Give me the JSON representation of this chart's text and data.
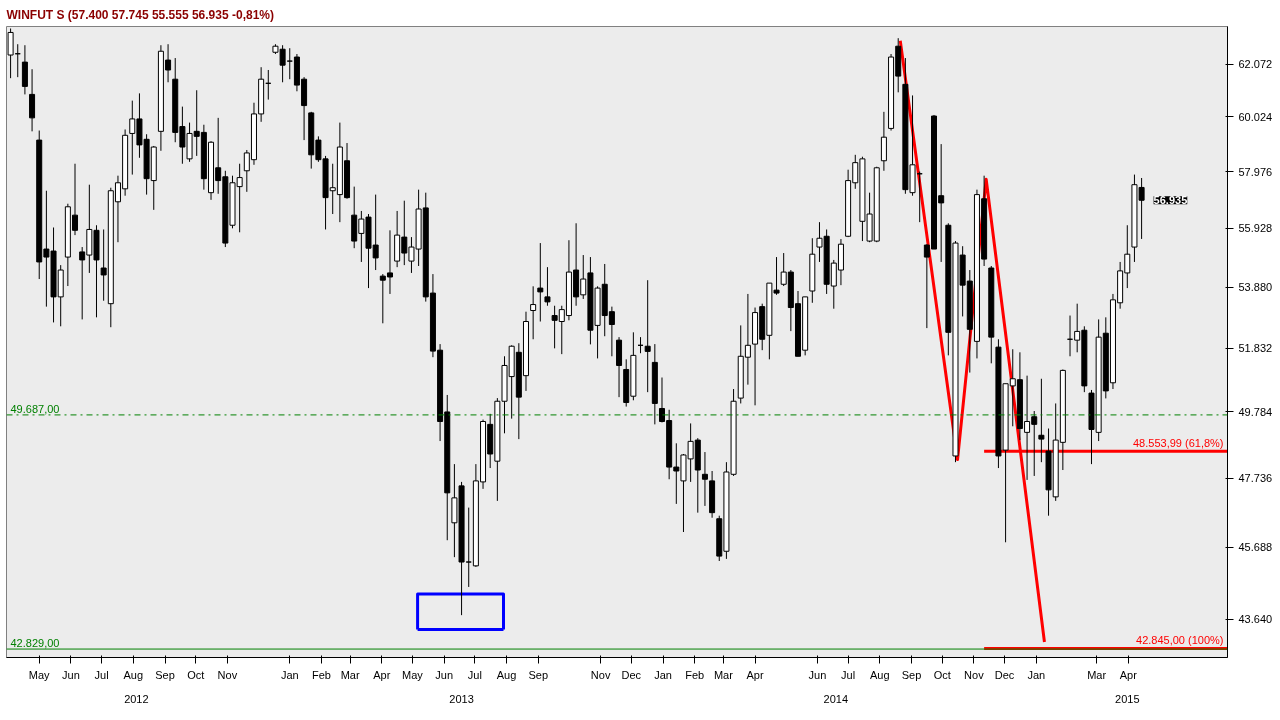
{
  "chart_data": {
    "type": "candlestick",
    "title": "WINFUT S (57.400 57.745 55.555 56.935 -0,81%)",
    "log": true,
    "x": [
      "2012-04-09",
      "2012-04-16",
      "2012-04-23",
      "2012-04-30",
      "2012-05-07",
      "2012-05-14",
      "2012-05-21",
      "2012-05-28",
      "2012-06-04",
      "2012-06-11",
      "2012-06-18",
      "2012-06-25",
      "2012-07-02",
      "2012-07-09",
      "2012-07-16",
      "2012-07-23",
      "2012-07-30",
      "2012-08-06",
      "2012-08-13",
      "2012-08-20",
      "2012-08-27",
      "2012-09-03",
      "2012-09-10",
      "2012-09-17",
      "2012-09-24",
      "2012-10-01",
      "2012-10-08",
      "2012-10-15",
      "2012-10-22",
      "2012-10-29",
      "2012-11-05",
      "2012-11-12",
      "2012-11-19",
      "2012-11-26",
      "2012-12-03",
      "2012-12-10",
      "2012-12-17",
      "2012-12-24",
      "2012-12-31",
      "2013-01-07",
      "2013-01-14",
      "2013-01-21",
      "2013-01-28",
      "2013-02-04",
      "2013-02-11",
      "2013-02-18",
      "2013-02-25",
      "2013-03-04",
      "2013-03-11",
      "2013-03-18",
      "2013-03-25",
      "2013-04-01",
      "2013-04-08",
      "2013-04-15",
      "2013-04-22",
      "2013-04-29",
      "2013-05-06",
      "2013-05-13",
      "2013-05-20",
      "2013-05-27",
      "2013-06-03",
      "2013-06-10",
      "2013-06-17",
      "2013-06-24",
      "2013-07-01",
      "2013-07-08",
      "2013-07-15",
      "2013-07-22",
      "2013-07-29",
      "2013-08-05",
      "2013-08-12",
      "2013-08-19",
      "2013-08-26",
      "2013-09-02",
      "2013-09-09",
      "2013-09-16",
      "2013-09-23",
      "2013-09-30",
      "2013-10-07",
      "2013-10-14",
      "2013-10-21",
      "2013-10-28",
      "2013-11-04",
      "2013-11-11",
      "2013-11-18",
      "2013-11-25",
      "2013-12-02",
      "2013-12-09",
      "2013-12-16",
      "2013-12-23",
      "2013-12-30",
      "2014-01-06",
      "2014-01-13",
      "2014-01-20",
      "2014-01-27",
      "2014-02-03",
      "2014-02-10",
      "2014-02-17",
      "2014-02-24",
      "2014-03-03",
      "2014-03-10",
      "2014-03-17",
      "2014-03-24",
      "2014-03-31",
      "2014-04-07",
      "2014-04-14",
      "2014-04-21",
      "2014-04-28",
      "2014-05-05",
      "2014-05-12",
      "2014-05-19",
      "2014-05-26",
      "2014-06-02",
      "2014-06-09",
      "2014-06-16",
      "2014-06-23",
      "2014-06-30",
      "2014-07-07",
      "2014-07-14",
      "2014-07-21",
      "2014-07-28",
      "2014-08-04",
      "2014-08-11",
      "2014-08-18",
      "2014-08-25",
      "2014-09-01",
      "2014-09-08",
      "2014-09-15",
      "2014-09-22",
      "2014-09-29",
      "2014-10-06",
      "2014-10-13",
      "2014-10-20",
      "2014-10-27",
      "2014-11-03",
      "2014-11-10",
      "2014-11-17",
      "2014-11-24",
      "2014-12-01",
      "2014-12-08",
      "2014-12-15",
      "2014-12-22",
      "2014-12-29",
      "2015-01-05",
      "2015-01-12",
      "2015-01-19",
      "2015-01-26",
      "2015-02-02",
      "2015-02-09",
      "2015-02-16",
      "2015-02-23",
      "2015-03-02",
      "2015-03-09",
      "2015-03-16",
      "2015-03-23",
      "2015-03-30",
      "2015-04-06",
      "2015-04-13",
      "2015-04-20"
    ],
    "ohlc": [
      [
        62430,
        63490,
        61520,
        63330
      ],
      [
        62480,
        62860,
        61560,
        62480
      ],
      [
        62150,
        62820,
        60890,
        61200
      ],
      [
        60890,
        61870,
        59480,
        59990
      ],
      [
        59150,
        59510,
        54160,
        54750
      ],
      [
        55200,
        57280,
        53220,
        54920
      ],
      [
        55130,
        55960,
        52690,
        53550
      ],
      [
        53550,
        54640,
        52560,
        54470
      ],
      [
        54920,
        56810,
        53920,
        56700
      ],
      [
        56400,
        58270,
        55690,
        55860
      ],
      [
        55100,
        55270,
        52790,
        54820
      ],
      [
        54990,
        57500,
        54370,
        55890
      ],
      [
        55860,
        56040,
        52860,
        54820
      ],
      [
        54540,
        55890,
        53420,
        54300
      ],
      [
        53320,
        57390,
        52530,
        57280
      ],
      [
        56880,
        57830,
        55440,
        57570
      ],
      [
        57350,
        59550,
        57100,
        59330
      ],
      [
        59400,
        60650,
        57870,
        59950
      ],
      [
        59950,
        60930,
        58490,
        58970
      ],
      [
        59180,
        59370,
        57140,
        57720
      ],
      [
        57650,
        58930,
        56590,
        58890
      ],
      [
        59480,
        62820,
        58750,
        62580
      ],
      [
        62230,
        62860,
        61360,
        61840
      ],
      [
        61480,
        62310,
        59070,
        59440
      ],
      [
        59660,
        60420,
        58270,
        58890
      ],
      [
        58450,
        59810,
        58340,
        59400
      ],
      [
        59480,
        61050,
        58560,
        59290
      ],
      [
        59440,
        59730,
        57320,
        57720
      ],
      [
        57210,
        59110,
        56950,
        59070
      ],
      [
        58120,
        59990,
        57170,
        57650
      ],
      [
        57790,
        58010,
        55270,
        55410
      ],
      [
        56040,
        57830,
        55930,
        57570
      ],
      [
        57430,
        58270,
        55790,
        57760
      ],
      [
        58010,
        58780,
        57240,
        58670
      ],
      [
        58420,
        60570,
        58230,
        60140
      ],
      [
        60140,
        61950,
        59840,
        61480
      ],
      [
        61320,
        61840,
        60690,
        61320
      ],
      [
        62540,
        62860,
        62470,
        62780
      ],
      [
        62660,
        62820,
        61360,
        62030
      ],
      [
        62190,
        62700,
        61480,
        62190
      ],
      [
        62350,
        62470,
        61010,
        61250
      ],
      [
        61480,
        61560,
        59150,
        60460
      ],
      [
        60180,
        60220,
        58090,
        58600
      ],
      [
        59150,
        59290,
        58340,
        58420
      ],
      [
        58450,
        58560,
        55890,
        57030
      ],
      [
        57280,
        58270,
        56440,
        57390
      ],
      [
        57140,
        59810,
        56150,
        58890
      ],
      [
        58380,
        59040,
        56990,
        57030
      ],
      [
        56400,
        57430,
        55230,
        55480
      ],
      [
        55750,
        56550,
        54750,
        56260
      ],
      [
        56330,
        56440,
        53850,
        55230
      ],
      [
        55340,
        57140,
        54470,
        54890
      ],
      [
        54260,
        54330,
        52660,
        54120
      ],
      [
        54370,
        55860,
        53650,
        54230
      ],
      [
        54780,
        56550,
        54570,
        55690
      ],
      [
        55620,
        56920,
        54640,
        55060
      ],
      [
        54780,
        55620,
        54370,
        55270
      ],
      [
        55200,
        57320,
        54610,
        56620
      ],
      [
        56660,
        57210,
        53390,
        53550
      ],
      [
        53680,
        54330,
        51540,
        51740
      ],
      [
        51770,
        51970,
        48870,
        49480
      ],
      [
        49780,
        50320,
        45890,
        47290
      ],
      [
        46400,
        48160,
        45400,
        47140
      ],
      [
        47500,
        47620,
        43760,
        45260
      ],
      [
        45260,
        46850,
        44550,
        45260
      ],
      [
        45150,
        48160,
        45120,
        47650
      ],
      [
        47620,
        49540,
        47410,
        49480
      ],
      [
        49390,
        49720,
        48040,
        48470
      ],
      [
        48250,
        50220,
        47050,
        50120
      ],
      [
        50120,
        51570,
        49110,
        51270
      ],
      [
        50910,
        51930,
        49570,
        51900
      ],
      [
        51700,
        52000,
        48930,
        50250
      ],
      [
        50940,
        53050,
        50450,
        52720
      ],
      [
        53090,
        53910,
        52130,
        53290
      ],
      [
        53850,
        55410,
        52720,
        53720
      ],
      [
        53550,
        54570,
        53250,
        53380
      ],
      [
        52920,
        53250,
        51830,
        52760
      ],
      [
        52720,
        53250,
        51640,
        53120
      ],
      [
        52920,
        55510,
        52760,
        54400
      ],
      [
        54470,
        56110,
        53250,
        53550
      ],
      [
        53620,
        54990,
        53480,
        54160
      ],
      [
        54370,
        54920,
        51960,
        52430
      ],
      [
        52590,
        53910,
        51500,
        53850
      ],
      [
        53980,
        54680,
        52230,
        52920
      ],
      [
        53050,
        53220,
        51570,
        52620
      ],
      [
        52100,
        52200,
        50250,
        51270
      ],
      [
        51140,
        51470,
        49950,
        50080
      ],
      [
        50280,
        52360,
        50150,
        51600
      ],
      [
        51930,
        52200,
        51670,
        51930
      ],
      [
        51900,
        54120,
        50410,
        51730
      ],
      [
        51370,
        51970,
        49390,
        50050
      ],
      [
        49890,
        50880,
        49450,
        49480
      ],
      [
        49510,
        49850,
        47700,
        48070
      ],
      [
        48070,
        48800,
        46960,
        47950
      ],
      [
        47650,
        48470,
        46130,
        48440
      ],
      [
        48320,
        49420,
        47620,
        48860
      ],
      [
        48900,
        48960,
        46700,
        47980
      ],
      [
        47850,
        48530,
        46900,
        47700
      ],
      [
        47650,
        47950,
        46550,
        46700
      ],
      [
        46520,
        46610,
        45290,
        45430
      ],
      [
        45570,
        48220,
        45350,
        47920
      ],
      [
        47850,
        50510,
        47800,
        50120
      ],
      [
        50220,
        52590,
        50050,
        51570
      ],
      [
        51540,
        53650,
        50650,
        51930
      ],
      [
        51970,
        53190,
        49990,
        53020
      ],
      [
        53220,
        53320,
        51770,
        52130
      ],
      [
        52260,
        54020,
        51470,
        54020
      ],
      [
        53780,
        54920,
        53620,
        53680
      ],
      [
        53980,
        55060,
        53920,
        54400
      ],
      [
        54400,
        54470,
        52400,
        53190
      ],
      [
        53320,
        53750,
        51570,
        51570
      ],
      [
        51770,
        53550,
        51600,
        53550
      ],
      [
        53750,
        55580,
        53350,
        55020
      ],
      [
        55270,
        56150,
        54750,
        55580
      ],
      [
        55650,
        55890,
        53650,
        53980
      ],
      [
        53920,
        54820,
        53150,
        54710
      ],
      [
        54470,
        55550,
        53950,
        55370
      ],
      [
        55650,
        58050,
        55620,
        57650
      ],
      [
        57570,
        58600,
        57350,
        58310
      ],
      [
        56180,
        58530,
        55480,
        58450
      ],
      [
        55480,
        57210,
        55440,
        56440
      ],
      [
        55480,
        58160,
        55440,
        58120
      ],
      [
        58380,
        60220,
        58010,
        59260
      ],
      [
        59590,
        62470,
        59510,
        62350
      ],
      [
        62780,
        63100,
        60970,
        61600
      ],
      [
        61280,
        62310,
        57170,
        57320
      ],
      [
        57210,
        60850,
        57100,
        58230
      ],
      [
        57900,
        57980,
        56150,
        57900
      ],
      [
        55340,
        55370,
        52500,
        54920
      ],
      [
        60060,
        60100,
        55200,
        55200
      ],
      [
        57100,
        59000,
        54750,
        56840
      ],
      [
        56040,
        56110,
        51600,
        52360
      ],
      [
        48410,
        55480,
        48220,
        55410
      ],
      [
        54990,
        55300,
        52890,
        53950
      ],
      [
        54090,
        54470,
        51040,
        52460
      ],
      [
        52060,
        57320,
        51500,
        57140
      ],
      [
        56990,
        57830,
        54610,
        54850
      ],
      [
        54540,
        54610,
        51340,
        52200
      ],
      [
        51870,
        52130,
        48040,
        48410
      ],
      [
        48590,
        50680,
        45830,
        50680
      ],
      [
        50610,
        51800,
        49330,
        50840
      ],
      [
        50810,
        51700,
        48900,
        49260
      ],
      [
        49140,
        50940,
        47680,
        49480
      ],
      [
        49630,
        49810,
        47800,
        49390
      ],
      [
        49050,
        50840,
        48220,
        48930
      ],
      [
        48560,
        49260,
        46610,
        47380
      ],
      [
        47170,
        50050,
        47050,
        48900
      ],
      [
        48830,
        51140,
        47980,
        51110
      ],
      [
        52130,
        52920,
        51570,
        52130
      ],
      [
        52100,
        53320,
        51700,
        52390
      ],
      [
        52430,
        52560,
        50410,
        50610
      ],
      [
        50380,
        50480,
        48160,
        49230
      ],
      [
        49140,
        52790,
        48870,
        52200
      ],
      [
        52330,
        52860,
        50210,
        50450
      ],
      [
        50710,
        53650,
        50510,
        53450
      ],
      [
        53350,
        54750,
        53150,
        54440
      ],
      [
        54370,
        56040,
        53850,
        55020
      ],
      [
        55270,
        57870,
        54750,
        57500
      ],
      [
        57400,
        57745,
        55555,
        56935
      ]
    ],
    "xlim": [
      "2012-04-05",
      "2015-07-13"
    ],
    "ylim": [
      42600,
      63570
    ],
    "xticks": [
      {
        "value": "2012-05-07",
        "label": "May"
      },
      {
        "value": "2012-06-07",
        "label": "Jun"
      },
      {
        "value": "2012-07-07",
        "label": "Jul"
      },
      {
        "value": "2012-08-07",
        "label": "Aug"
      },
      {
        "value": "2012-09-07",
        "label": "Sep"
      },
      {
        "value": "2012-10-07",
        "label": "Oct"
      },
      {
        "value": "2012-11-07",
        "label": "Nov"
      },
      {
        "value": "2013-01-07",
        "label": "Jan"
      },
      {
        "value": "2013-02-07",
        "label": "Feb"
      },
      {
        "value": "2013-03-07",
        "label": "Mar"
      },
      {
        "value": "2013-04-07",
        "label": "Apr"
      },
      {
        "value": "2013-05-07",
        "label": "May"
      },
      {
        "value": "2013-06-07",
        "label": "Jun"
      },
      {
        "value": "2013-07-07",
        "label": "Jul"
      },
      {
        "value": "2013-08-07",
        "label": "Aug"
      },
      {
        "value": "2013-09-07",
        "label": "Sep"
      },
      {
        "value": "2013-11-07",
        "label": "Nov"
      },
      {
        "value": "2013-12-07",
        "label": "Dec"
      },
      {
        "value": "2014-01-07",
        "label": "Jan"
      },
      {
        "value": "2014-02-07",
        "label": "Feb"
      },
      {
        "value": "2014-03-07",
        "label": "Mar"
      },
      {
        "value": "2014-04-07",
        "label": "Apr"
      },
      {
        "value": "2014-06-07",
        "label": "Jun"
      },
      {
        "value": "2014-07-07",
        "label": "Jul"
      },
      {
        "value": "2014-08-07",
        "label": "Aug"
      },
      {
        "value": "2014-09-07",
        "label": "Sep"
      },
      {
        "value": "2014-10-07",
        "label": "Oct"
      },
      {
        "value": "2014-11-07",
        "label": "Nov"
      },
      {
        "value": "2014-12-07",
        "label": "Dec"
      },
      {
        "value": "2015-01-07",
        "label": "Jan"
      },
      {
        "value": "2015-03-07",
        "label": "Mar"
      },
      {
        "value": "2015-04-07",
        "label": "Apr"
      }
    ],
    "yticks": [
      {
        "value": 43640,
        "label": "43.640"
      },
      {
        "value": 45688,
        "label": "45.688"
      },
      {
        "value": 47736,
        "label": "47.736"
      },
      {
        "value": 49784,
        "label": "49.784"
      },
      {
        "value": 51832,
        "label": "51.832"
      },
      {
        "value": 53880,
        "label": "53.880"
      },
      {
        "value": 55928,
        "label": "55.928"
      },
      {
        "value": 57976,
        "label": "57.976"
      },
      {
        "value": 60024,
        "label": "60.024"
      },
      {
        "value": 62072,
        "label": "62.072"
      }
    ],
    "series": [
      {
        "type": "line",
        "color": "#ff0000",
        "x": [
          "2014-08-27",
          "2014-10-22",
          "2014-11-19",
          "2015-01-15"
        ],
        "values": [
          63000,
          48300,
          57700,
          43020
        ]
      },
      {
        "type": "line",
        "name": "48.553,99 (61,8%)",
        "color": "#ff0000",
        "x": [
          "2014-11-17",
          "2015-07-13"
        ],
        "values": [
          48553.99,
          48553.99
        ]
      },
      {
        "type": "line",
        "name": "42.845,00 (100%)",
        "color": "#ff0000",
        "x": [
          "2014-11-17",
          "2015-07-13"
        ],
        "values": [
          42845,
          42845
        ]
      },
      {
        "type": "line",
        "color": "#0000ff",
        "x": [
          "2013-05-12",
          "2013-05-12",
          "2013-08-04",
          "2013-08-04"
        ],
        "values": [
          43360,
          44350,
          44350,
          43360
        ]
      },
      {
        "type": "line",
        "color": "#0000ff",
        "x": [
          "2013-05-12",
          "2013-08-04"
        ],
        "values": [
          43360,
          43360
        ]
      }
    ],
    "ref_lines": [
      {
        "axis": "y",
        "value": 49687,
        "label": "49.687,00",
        "color": "#008000",
        "line_style": "dashdot"
      },
      {
        "axis": "y",
        "value": 42829,
        "label": "42.829,00",
        "color": "#008000",
        "line_style": "solid"
      }
    ],
    "x2lim": [
      "2012-04-05",
      "2015-07-13"
    ],
    "x2ticks": [
      {
        "value": "2012-08-10",
        "label": "2012"
      },
      {
        "value": "2013-06-24",
        "label": "2013"
      },
      {
        "value": "2014-06-25",
        "label": "2014"
      },
      {
        "value": "2015-04-06",
        "label": "2015"
      }
    ],
    "annotations": [
      {
        "text": "56.935",
        "x": "2015-04-20",
        "y": 56935
      }
    ]
  }
}
